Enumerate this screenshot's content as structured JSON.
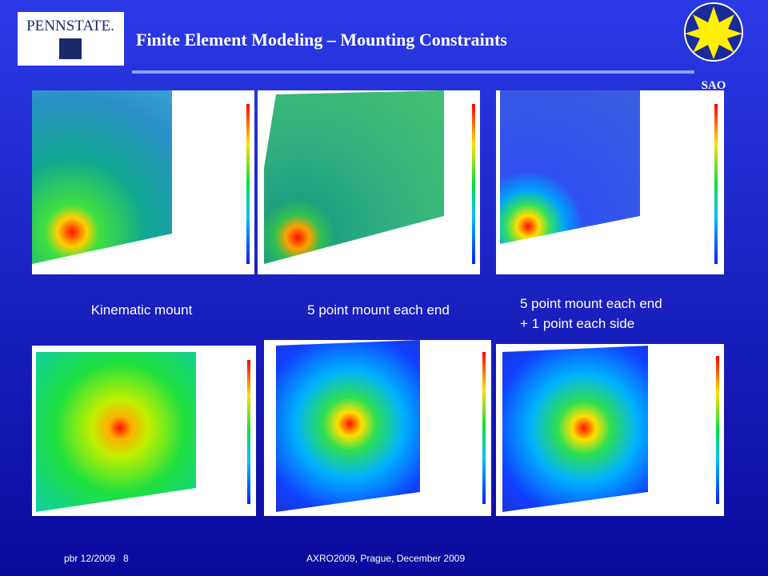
{
  "header": {
    "title": "Finite Element Modeling – Mounting Constraints",
    "logo_left": "PENNSTATE.",
    "logo_right": "SAO"
  },
  "captions": [
    [
      "Kinematic mount"
    ],
    [
      "5 point mount each end"
    ],
    [
      "5 point mount each end",
      "+ 1 point each side"
    ]
  ],
  "footer": {
    "left": "pbr 12/2009   8",
    "center": "AXRO2009, Prague, December 2009"
  }
}
